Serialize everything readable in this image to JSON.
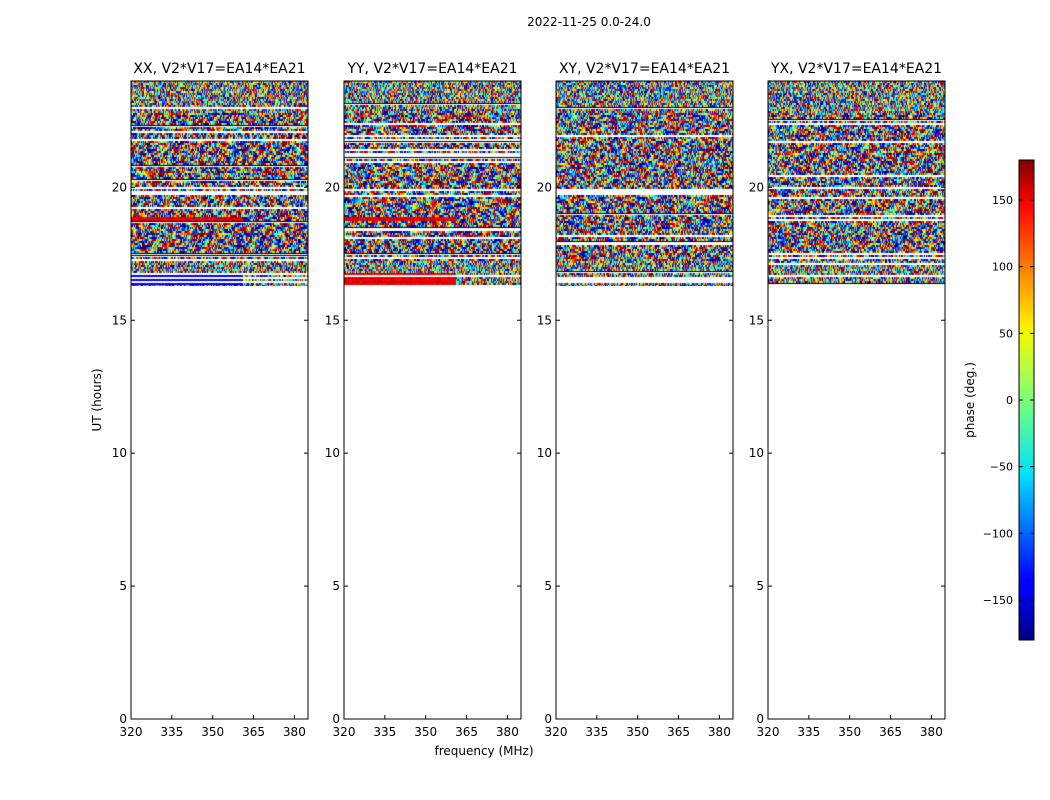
{
  "figure": {
    "suptitle": "2022-11-25 0.0-24.0"
  },
  "chart_data": {
    "type": "heatmap",
    "ylabel": "UT (hours)",
    "xlabel": "frequency (MHz)",
    "xlim": [
      320,
      385
    ],
    "ylim": [
      0,
      24
    ],
    "xticks": [
      320,
      335,
      350,
      365,
      380
    ],
    "yticks": [
      0,
      5,
      10,
      15,
      20
    ],
    "data_start_hour": 16.3,
    "panels": [
      {
        "title": "XX, V2*V17=EA14*EA21",
        "band_1638_1680": "blue",
        "band_1875_1890": "red"
      },
      {
        "title": "YY, V2*V17=EA14*EA21",
        "band_1638_1680": "red",
        "band_1875_1890": "red"
      },
      {
        "title": "XY, V2*V17=EA14*EA21",
        "band_1638_1680": "noise",
        "band_1875_1890": "noise"
      },
      {
        "title": "YX, V2*V17=EA14*EA21",
        "band_1638_1680": "noise",
        "band_1875_1890": "noise"
      }
    ],
    "colorbar": {
      "label": "phase (deg.)",
      "range": [
        -180,
        180
      ],
      "ticks": [
        -150,
        -100,
        -50,
        0,
        50,
        100,
        150
      ],
      "colormap": "jet"
    }
  }
}
